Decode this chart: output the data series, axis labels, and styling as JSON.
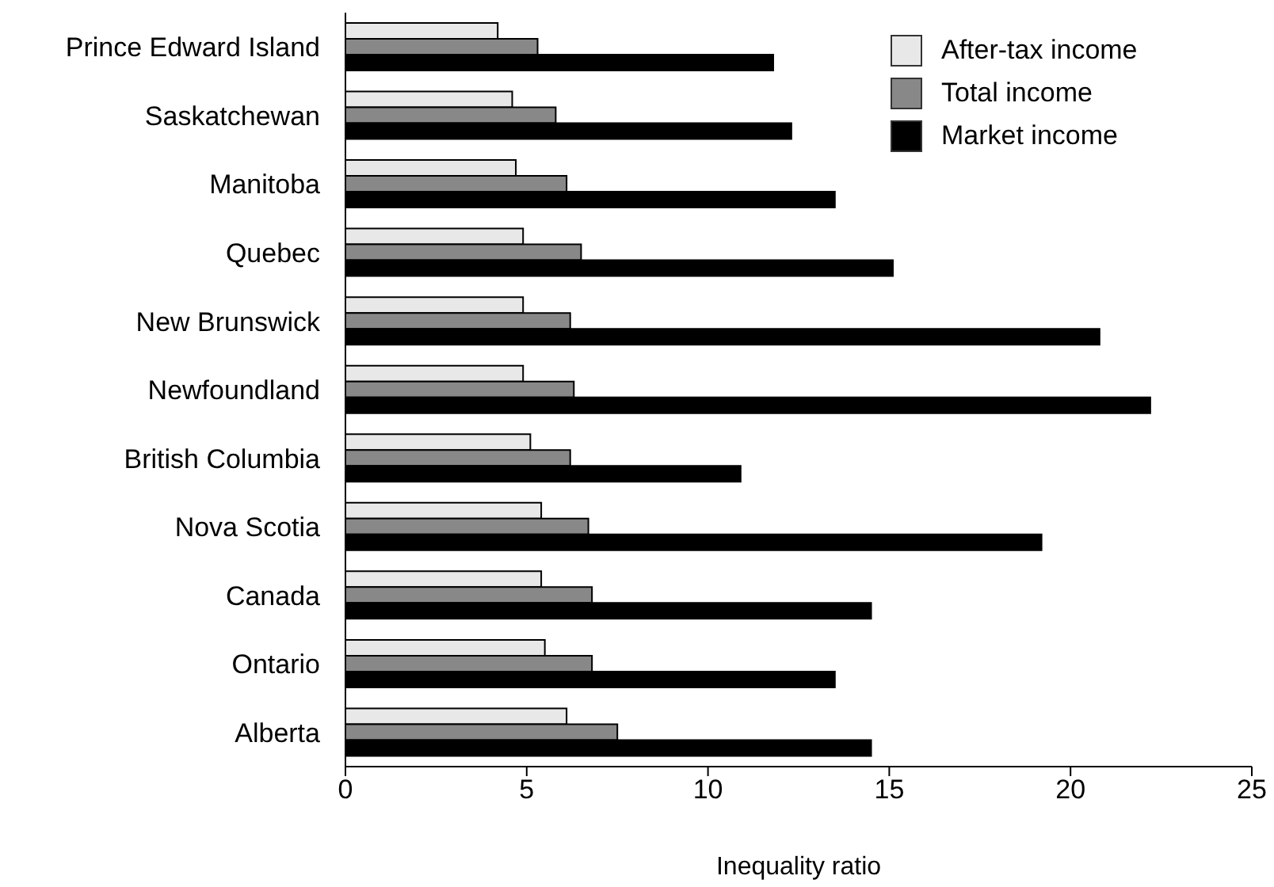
{
  "chart_data": {
    "type": "bar",
    "orientation": "horizontal",
    "xlabel": "Inequality ratio",
    "categories": [
      "Prince Edward Island",
      "Saskatchewan",
      "Manitoba",
      "Quebec",
      "New Brunswick",
      "Newfoundland",
      "British Columbia",
      "Nova Scotia",
      "Canada",
      "Ontario",
      "Alberta"
    ],
    "series": [
      {
        "name": "After-tax income",
        "color": "#e8e8e8",
        "values": [
          4.2,
          4.6,
          4.7,
          4.9,
          4.9,
          4.9,
          5.1,
          5.4,
          5.4,
          5.5,
          6.1
        ]
      },
      {
        "name": "Total income",
        "color": "#888888",
        "values": [
          5.3,
          5.8,
          6.1,
          6.5,
          6.2,
          6.3,
          6.2,
          6.7,
          6.8,
          6.8,
          7.5
        ]
      },
      {
        "name": "Market income",
        "color": "#000000",
        "values": [
          11.8,
          12.3,
          13.5,
          15.1,
          20.8,
          22.2,
          10.9,
          19.2,
          14.5,
          13.5,
          14.5
        ]
      }
    ],
    "xlim": [
      0,
      25
    ],
    "xticks": [
      0,
      5,
      10,
      15,
      20,
      25
    ],
    "grid": false,
    "legend": "top right"
  }
}
